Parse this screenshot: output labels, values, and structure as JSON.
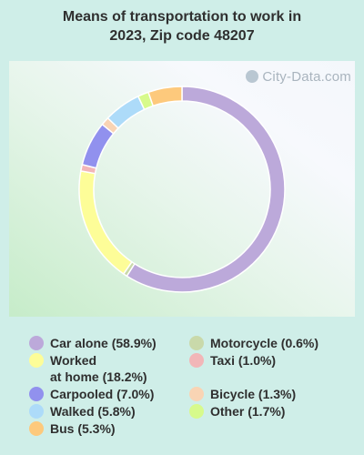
{
  "chart_data": {
    "type": "pie",
    "donut": true,
    "title": "Means of transportation to work in 2023, Zip code 48207",
    "title_lines": [
      "Means of transportation to work in",
      "2023, Zip code 48207"
    ],
    "slices": [
      {
        "label": "Car alone (58.9%)",
        "value": 58.9,
        "color": "#bca9da"
      },
      {
        "label": "Motorcycle (0.6%)",
        "value": 0.6,
        "color": "#c9d9aa"
      },
      {
        "label": "Worked\nat home (18.2%)",
        "value": 18.2,
        "color": "#fdfd98"
      },
      {
        "label": "Taxi (1.0%)",
        "value": 1.0,
        "color": "#f2b6b8"
      },
      {
        "label": "Carpooled (7.0%)",
        "value": 7.0,
        "color": "#9191ee"
      },
      {
        "label": "Bicycle (1.3%)",
        "value": 1.3,
        "color": "#f9d4b4"
      },
      {
        "label": "Walked (5.8%)",
        "value": 5.8,
        "color": "#addbf9"
      },
      {
        "label": "Other (1.7%)",
        "value": 1.7,
        "color": "#d7fa8c"
      },
      {
        "label": "Bus (5.3%)",
        "value": 5.3,
        "color": "#fdc97c"
      }
    ],
    "legend_order": [
      "Car alone (58.9%)",
      "Worked\nat home (18.2%)",
      "Carpooled (7.0%)",
      "Walked (5.8%)",
      "Bus (5.3%)",
      "Motorcycle (0.6%)",
      "Taxi (1.0%)",
      "Bicycle (1.3%)",
      "Other (1.7%)"
    ],
    "legend_placement": "bottom"
  },
  "watermark": "City-Data.com"
}
